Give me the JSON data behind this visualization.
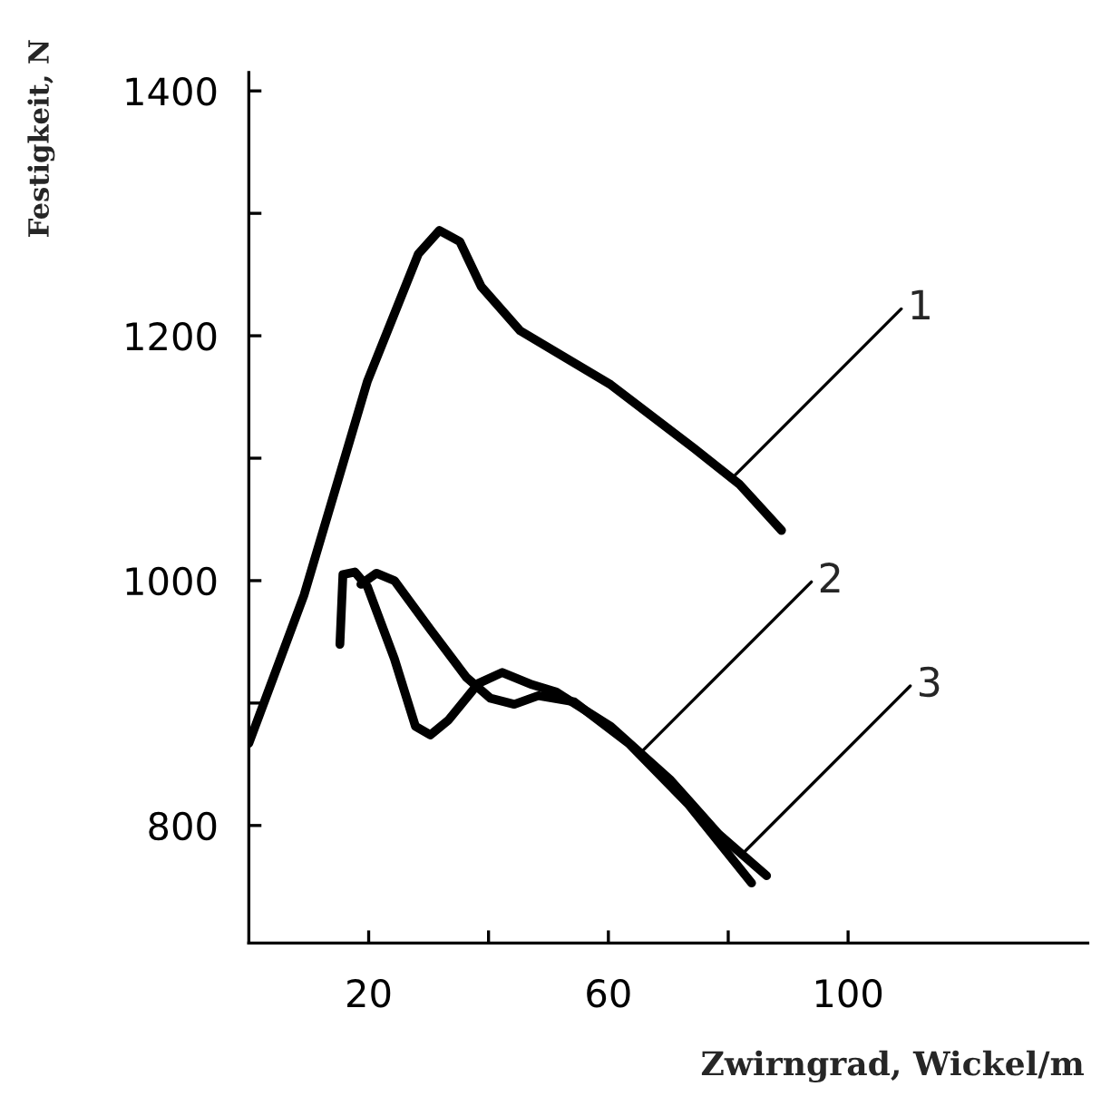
{
  "chart_data": {
    "type": "line",
    "xlabel": "Zwirngrad, Wickel/m",
    "ylabel": "Festigkeit, N",
    "xlim": [
      0,
      140
    ],
    "ylim": [
      704,
      1415
    ],
    "xticks": [
      20,
      {
        "value": 40,
        "label": null
      },
      60,
      {
        "value": 80,
        "label": null
      },
      100
    ],
    "yticks": [
      800,
      {
        "value": 900,
        "label": null
      },
      1000,
      {
        "value": 1100,
        "label": null
      },
      1200,
      {
        "value": 1300,
        "label": null
      },
      1400
    ],
    "grid": false,
    "legend": false,
    "marker": "none",
    "line_style": "solid",
    "series": [
      {
        "color": "#000000",
        "x": [
          0,
          9.2,
          19.8,
          28.3,
          31.8,
          35.2,
          38.8,
          45.3,
          60.4,
          74.3,
          81.8,
          88.9
        ],
        "values": [
          867,
          988,
          1163,
          1267,
          1286,
          1277,
          1240,
          1204,
          1160,
          1108,
          1079,
          1041
        ]
      },
      {
        "color": "#000000",
        "x": [
          15.2,
          15.7,
          17.7,
          19.8,
          24.3,
          27.8,
          30.3,
          33.3,
          38.3,
          42.3,
          47.3,
          51.3,
          60.4,
          70.4,
          78.4,
          86.4
        ],
        "values": [
          948,
          1005,
          1007,
          995,
          936,
          881,
          874,
          886,
          916,
          925,
          915,
          909,
          881,
          837,
          793,
          759
        ]
      },
      {
        "color": "#000000",
        "x": [
          18.7,
          21.3,
          24.3,
          30.3,
          36.3,
          40.3,
          44.3,
          48.3,
          54.3,
          63.4,
          73.4,
          83.9
        ],
        "values": [
          997,
          1006,
          1000,
          960,
          921,
          904,
          899,
          906,
          901,
          867,
          817,
          753
        ]
      }
    ],
    "annotations": [
      {
        "text": "1",
        "x": 80.5,
        "y": 1083
      },
      {
        "text": "2",
        "x": 65.5,
        "y": 860
      },
      {
        "text": "3",
        "x": 82.0,
        "y": 775
      }
    ]
  }
}
